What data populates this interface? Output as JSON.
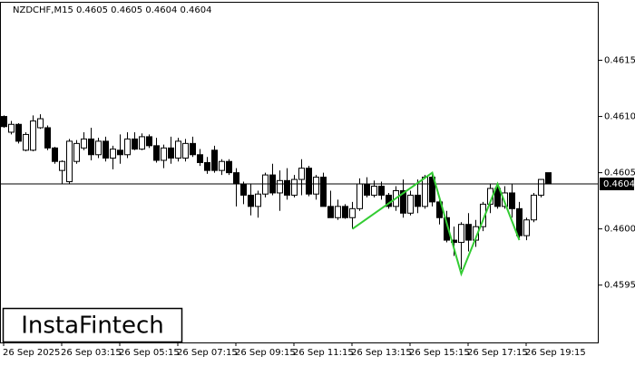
{
  "chart_data": {
    "type": "candlestick",
    "title": "NZDCHF,M15  0.4605 0.4605 0.4604 0.4604",
    "watermark": "InstaFintech",
    "categories": [
      "26 Sep 2025",
      null,
      null,
      null,
      null,
      null,
      null,
      null,
      "26 Sep 03:15",
      null,
      null,
      null,
      null,
      null,
      null,
      null,
      "26 Sep 05:15",
      null,
      null,
      null,
      null,
      null,
      null,
      null,
      "26 Sep 07:15",
      null,
      null,
      null,
      null,
      null,
      null,
      null,
      "26 Sep 09:15",
      null,
      null,
      null,
      null,
      null,
      null,
      null,
      "26 Sep 11:15",
      null,
      null,
      null,
      null,
      null,
      null,
      null,
      "26 Sep 13:15",
      null,
      null,
      null,
      null,
      null,
      null,
      null,
      "26 Sep 15:15",
      null,
      null,
      null,
      null,
      null,
      null,
      null,
      "26 Sep 17:15",
      null,
      null,
      null,
      null,
      null,
      null,
      null,
      "26 Sep 19:15",
      null,
      null,
      null
    ],
    "ohlc": [
      [
        0.461,
        0.46101,
        0.4609,
        0.46091
      ],
      [
        0.46086,
        0.46096,
        0.46084,
        0.46093
      ],
      [
        0.46093,
        0.46094,
        0.46076,
        0.46078
      ],
      [
        0.4607,
        0.46086,
        0.46069,
        0.46084
      ],
      [
        0.4607,
        0.46101,
        0.46069,
        0.46096
      ],
      [
        0.4609,
        0.46102,
        0.46089,
        0.46098
      ],
      [
        0.4609,
        0.46092,
        0.4607,
        0.46072
      ],
      [
        0.46072,
        0.46073,
        0.46058,
        0.4606
      ],
      [
        0.46052,
        0.46061,
        0.4604,
        0.4606
      ],
      [
        0.46042,
        0.4608,
        0.4604,
        0.46078
      ],
      [
        0.4606,
        0.46079,
        0.46058,
        0.46076
      ],
      [
        0.46072,
        0.46086,
        0.4607,
        0.4608
      ],
      [
        0.4608,
        0.4609,
        0.46061,
        0.46066
      ],
      [
        0.46066,
        0.46081,
        0.46063,
        0.46078
      ],
      [
        0.46078,
        0.46082,
        0.4606,
        0.46063
      ],
      [
        0.46063,
        0.46074,
        0.46053,
        0.46071
      ],
      [
        0.4607,
        0.46084,
        0.46058,
        0.46066
      ],
      [
        0.46066,
        0.46086,
        0.46063,
        0.4608
      ],
      [
        0.4608,
        0.46086,
        0.4607,
        0.46071
      ],
      [
        0.46071,
        0.46085,
        0.4607,
        0.46082
      ],
      [
        0.46082,
        0.46084,
        0.46072,
        0.46074
      ],
      [
        0.46074,
        0.46081,
        0.46059,
        0.46061
      ],
      [
        0.46061,
        0.46075,
        0.46054,
        0.46072
      ],
      [
        0.46072,
        0.46082,
        0.46058,
        0.46063
      ],
      [
        0.46063,
        0.46081,
        0.4606,
        0.46078
      ],
      [
        0.46063,
        0.4608,
        0.4606,
        0.46076
      ],
      [
        0.46076,
        0.46082,
        0.46064,
        0.46066
      ],
      [
        0.46066,
        0.46071,
        0.46056,
        0.46059
      ],
      [
        0.46059,
        0.46064,
        0.46049,
        0.46052
      ],
      [
        0.4607,
        0.46074,
        0.4605,
        0.46052
      ],
      [
        0.46052,
        0.46062,
        0.46048,
        0.4606
      ],
      [
        0.4606,
        0.46062,
        0.46048,
        0.4605
      ],
      [
        0.4605,
        0.46054,
        0.4602,
        0.4604
      ],
      [
        0.4604,
        0.46042,
        0.46022,
        0.4603
      ],
      [
        0.4603,
        0.4604,
        0.46012,
        0.4602
      ],
      [
        0.4602,
        0.46034,
        0.4601,
        0.46031
      ],
      [
        0.46031,
        0.4605,
        0.46028,
        0.46048
      ],
      [
        0.46048,
        0.46058,
        0.4603,
        0.46032
      ],
      [
        0.46032,
        0.46052,
        0.46016,
        0.46043
      ],
      [
        0.46043,
        0.46054,
        0.46026,
        0.4603
      ],
      [
        0.4603,
        0.46048,
        0.46028,
        0.46044
      ],
      [
        0.46044,
        0.46062,
        0.4603,
        0.46054
      ],
      [
        0.46054,
        0.46056,
        0.46029,
        0.46031
      ],
      [
        0.46031,
        0.46048,
        0.46026,
        0.46046
      ],
      [
        0.46046,
        0.4605,
        0.4602,
        0.4602
      ],
      [
        0.4602,
        0.46034,
        0.4601,
        0.4601
      ],
      [
        0.4601,
        0.46026,
        0.46008,
        0.4602
      ],
      [
        0.4602,
        0.46022,
        0.46009,
        0.4601
      ],
      [
        0.4601,
        0.46024,
        0.46,
        0.46018
      ],
      [
        0.46018,
        0.46045,
        0.46016,
        0.4604
      ],
      [
        0.4604,
        0.46046,
        0.46028,
        0.4603
      ],
      [
        0.4603,
        0.46043,
        0.46028,
        0.46038
      ],
      [
        0.46038,
        0.46042,
        0.46026,
        0.4603
      ],
      [
        0.4603,
        0.46032,
        0.46018,
        0.4602
      ],
      [
        0.4602,
        0.46038,
        0.46016,
        0.46034
      ],
      [
        0.46034,
        0.46044,
        0.4601,
        0.46014
      ],
      [
        0.46014,
        0.46034,
        0.46012,
        0.4603
      ],
      [
        0.4603,
        0.46044,
        0.46014,
        0.4602
      ],
      [
        0.4602,
        0.46048,
        0.46018,
        0.46046
      ],
      [
        0.46046,
        0.4605,
        0.4602,
        0.46024
      ],
      [
        0.46024,
        0.46026,
        0.46004,
        0.4601
      ],
      [
        0.4601,
        0.46016,
        0.45988,
        0.4599
      ],
      [
        0.4599,
        0.46002,
        0.45976,
        0.45988
      ],
      [
        0.45988,
        0.46006,
        0.45964,
        0.46004
      ],
      [
        0.46004,
        0.46014,
        0.4598,
        0.4599
      ],
      [
        0.4599,
        0.46008,
        0.45984,
        0.46002
      ],
      [
        0.46002,
        0.46024,
        0.45998,
        0.46022
      ],
      [
        0.46022,
        0.4604,
        0.46014,
        0.46036
      ],
      [
        0.46036,
        0.46041,
        0.46018,
        0.4602
      ],
      [
        0.4602,
        0.46038,
        0.46018,
        0.46032
      ],
      [
        0.46032,
        0.4604,
        0.4601,
        0.46018
      ],
      [
        0.46018,
        0.46024,
        0.45992,
        0.45994
      ],
      [
        0.45994,
        0.4601,
        0.4599,
        0.46008
      ],
      [
        0.46008,
        0.46032,
        0.46006,
        0.4603
      ],
      [
        0.4603,
        0.46044,
        0.46028,
        0.46044
      ],
      [
        0.4605,
        0.4605,
        0.4604,
        0.4604
      ]
    ],
    "pattern": {
      "color": "#33cc33",
      "x": [
        48,
        59,
        63,
        68,
        71
      ],
      "y": [
        0.46,
        0.4605,
        0.4596,
        0.4604,
        0.4599
      ]
    },
    "last_price": 0.4604,
    "ylim": [
      0.45899,
      0.46202
    ],
    "yticks": [
      0.4595,
      {
        "value": 0.46,
        "label": "0.4600"
      },
      0.4605,
      {
        "value": 0.461,
        "label": "0.4610"
      },
      0.4615
    ]
  }
}
